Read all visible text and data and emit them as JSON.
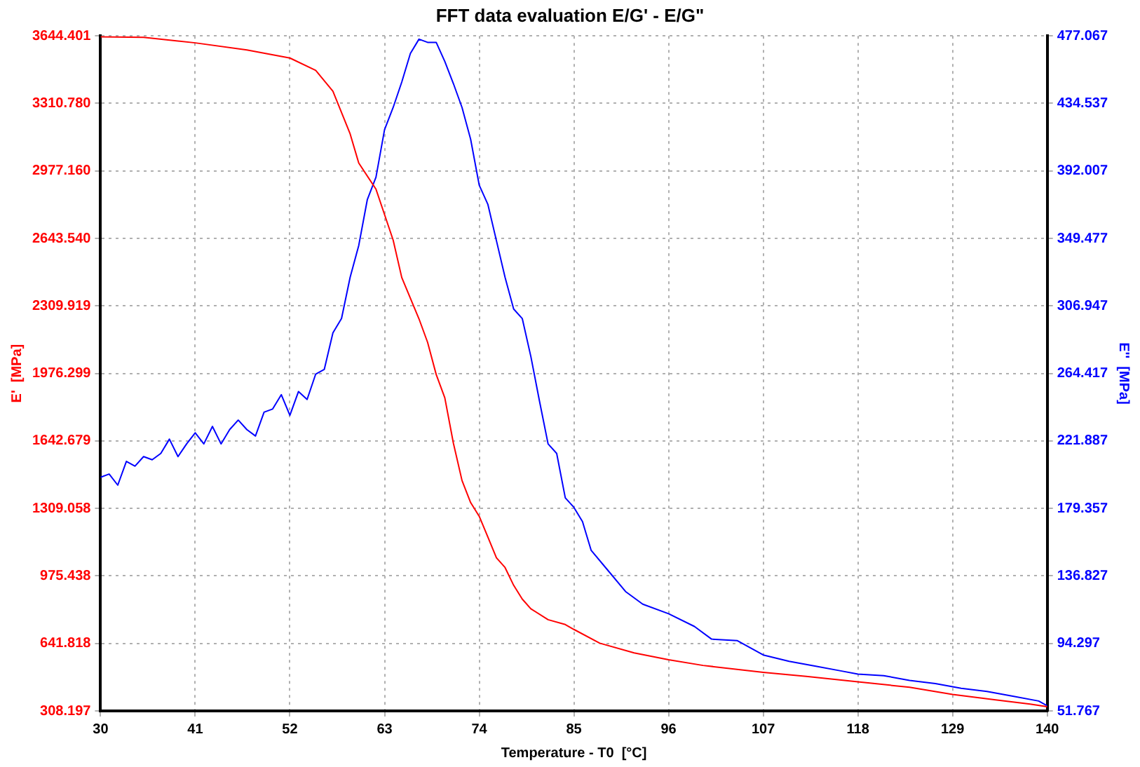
{
  "chart_data": {
    "type": "line",
    "title": "FFT data evaluation E/G' - E/G\"",
    "xlabel": "Temperature - T0  [°C]",
    "ylabel": "E'  [MPa]",
    "y2label": "E''  [MPa]",
    "xlim": [
      30,
      140
    ],
    "xticks": [
      30,
      41,
      52,
      63,
      74,
      85,
      96,
      107,
      118,
      129,
      140
    ],
    "ylim": [
      308.197,
      3644.401
    ],
    "yticks": [
      {
        "value": 308.197,
        "label": "308.197"
      },
      {
        "value": 641.818,
        "label": "641.818"
      },
      {
        "value": 975.438,
        "label": "975.438"
      },
      {
        "value": 1309.058,
        "label": "1309.058"
      },
      {
        "value": 1642.679,
        "label": "1642.679"
      },
      {
        "value": 1976.299,
        "label": "1976.299"
      },
      {
        "value": 2309.919,
        "label": "2309.919"
      },
      {
        "value": 2643.54,
        "label": "2643.540"
      },
      {
        "value": 2977.16,
        "label": "2977.160"
      },
      {
        "value": 3310.78,
        "label": "3310.780"
      },
      {
        "value": 3644.401,
        "label": "3644.401"
      }
    ],
    "y2lim": [
      51.767,
      477.067
    ],
    "y2ticks": [
      {
        "value": 51.767,
        "label": "51.767"
      },
      {
        "value": 94.297,
        "label": "94.297"
      },
      {
        "value": 136.827,
        "label": "136.827"
      },
      {
        "value": 179.357,
        "label": "179.357"
      },
      {
        "value": 221.887,
        "label": "221.887"
      },
      {
        "value": 264.417,
        "label": "264.417"
      },
      {
        "value": 306.947,
        "label": "306.947"
      },
      {
        "value": 349.477,
        "label": "349.477"
      },
      {
        "value": 392.007,
        "label": "392.007"
      },
      {
        "value": 434.537,
        "label": "434.537"
      },
      {
        "value": 477.067,
        "label": "477.067"
      }
    ],
    "grid": true,
    "line_style": "solid",
    "series": [
      {
        "color": "#ff0000",
        "x": [
          30,
          35,
          41,
          47,
          52,
          55,
          57,
          59,
          60,
          62,
          64,
          65,
          67,
          68,
          69,
          70,
          71,
          72,
          73,
          74,
          75,
          76,
          77,
          78,
          79,
          80,
          82,
          84,
          85,
          88,
          92,
          96,
          100,
          107,
          112,
          118,
          124,
          129,
          134,
          138,
          140
        ],
        "values": [
          3640,
          3637,
          3610,
          3575,
          3535,
          3474,
          3371,
          3160,
          3016,
          2887,
          2635,
          2450,
          2246,
          2130,
          1971,
          1856,
          1631,
          1447,
          1338,
          1270,
          1168,
          1065,
          1017,
          929,
          861,
          813,
          759,
          735,
          711,
          643,
          595,
          561,
          533,
          499,
          479,
          452,
          425,
          390,
          363,
          342,
          329
        ]
      },
      {
        "color": "#0000ff",
        "axis": "y2",
        "x": [
          30,
          31,
          32,
          33,
          34,
          35,
          36,
          37,
          38,
          39,
          40,
          41,
          42,
          43,
          44,
          45,
          46,
          47,
          48,
          49,
          50,
          51,
          52,
          53,
          54,
          55,
          56,
          57,
          58,
          59,
          60,
          61,
          62,
          63,
          64,
          65,
          66,
          67,
          68,
          69,
          70,
          71,
          72,
          73,
          74,
          75,
          76,
          77,
          78,
          79,
          80,
          81,
          82,
          83,
          84,
          85,
          86,
          87,
          89,
          91,
          93,
          96,
          99,
          101,
          104,
          107,
          110,
          113,
          116,
          118,
          121,
          124,
          127,
          130,
          133,
          136,
          139,
          140
        ],
        "values": [
          199,
          201,
          194,
          209,
          206,
          212,
          210,
          214,
          223,
          212,
          220,
          227,
          220,
          231,
          220,
          229,
          235,
          229,
          225,
          240,
          242,
          251,
          238,
          253,
          248,
          264,
          267,
          290,
          299,
          325,
          345,
          374,
          388,
          418,
          432,
          448,
          466,
          475,
          473,
          473,
          461,
          447,
          432,
          412,
          383,
          371,
          348,
          325,
          305,
          299,
          275,
          247,
          220,
          214,
          186,
          180,
          171,
          153,
          140,
          127,
          119,
          113,
          105,
          97,
          96,
          87,
          83,
          80,
          77,
          75,
          74,
          71,
          69,
          66,
          64,
          61,
          58,
          55
        ]
      }
    ]
  }
}
